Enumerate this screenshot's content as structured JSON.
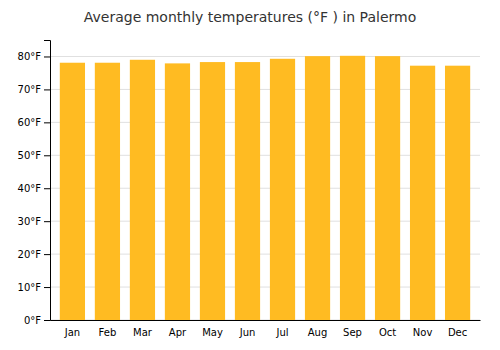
{
  "chart_data": {
    "type": "bar",
    "title": "Average monthly temperatures (°F ) in Palermo",
    "categories": [
      "Jan",
      "Feb",
      "Mar",
      "Apr",
      "May",
      "Jun",
      "Jul",
      "Aug",
      "Sep",
      "Oct",
      "Nov",
      "Dec"
    ],
    "values": [
      78.1,
      78.1,
      79.0,
      77.9,
      78.3,
      78.3,
      79.3,
      80.1,
      80.2,
      80.1,
      77.2,
      77.2
    ],
    "color": "#FFBB22",
    "ylim": [
      0,
      85
    ],
    "yticks": [
      {
        "value": 0,
        "label": "0°F"
      },
      {
        "value": 10,
        "label": "10°F"
      },
      {
        "value": 20,
        "label": "20°F"
      },
      {
        "value": 30,
        "label": "30°F"
      },
      {
        "value": 40,
        "label": "40°F"
      },
      {
        "value": 50,
        "label": "50°F"
      },
      {
        "value": 60,
        "label": "60°F"
      },
      {
        "value": 70,
        "label": "70°F"
      },
      {
        "value": 80,
        "label": "80°F"
      }
    ],
    "grid": true
  }
}
